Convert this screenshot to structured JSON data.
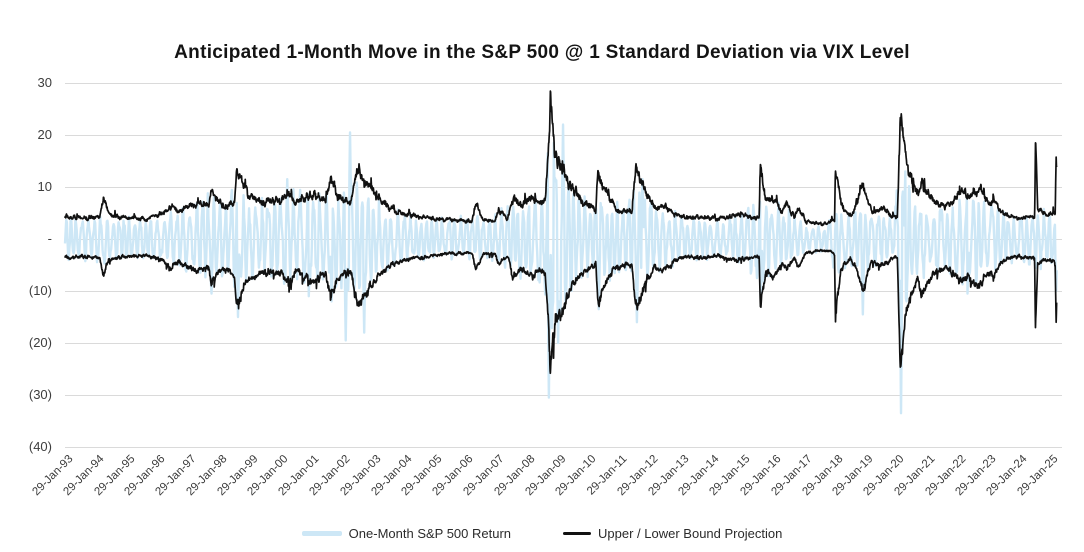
{
  "chart_data": {
    "type": "line",
    "title": "Anticipated 1-Month Move in the S&P 500 @ 1 Standard Deviation via VIX Level",
    "grid": true,
    "legend_position": "bottom",
    "colors": {
      "grid": "#dadada",
      "axis_text": "#3d3d3d",
      "background": "#ffffff"
    },
    "y_axis": {
      "range": [
        -40,
        30
      ],
      "negative_format": "parentheses",
      "ticks": [
        {
          "v": 30,
          "label": "30"
        },
        {
          "v": 20,
          "label": "20"
        },
        {
          "v": 10,
          "label": "10"
        },
        {
          "v": 0,
          "label": "-"
        },
        {
          "v": -10,
          "label": "(10)"
        },
        {
          "v": -20,
          "label": "(20)"
        },
        {
          "v": -30,
          "label": "(30)"
        },
        {
          "v": -40,
          "label": "(40)"
        }
      ]
    },
    "x_axis": {
      "tick_labels": [
        "29-Jan-93",
        "29-Jan-94",
        "29-Jan-95",
        "29-Jan-96",
        "29-Jan-97",
        "29-Jan-98",
        "29-Jan-99",
        "29-Jan-00",
        "29-Jan-01",
        "29-Jan-02",
        "29-Jan-03",
        "29-Jan-04",
        "29-Jan-05",
        "29-Jan-06",
        "29-Jan-07",
        "29-Jan-08",
        "29-Jan-09",
        "29-Jan-10",
        "29-Jan-11",
        "29-Jan-12",
        "29-Jan-13",
        "29-Jan-14",
        "29-Jan-15",
        "29-Jan-16",
        "29-Jan-17",
        "29-Jan-18",
        "29-Jan-19",
        "29-Jan-20",
        "29-Jan-21",
        "29-Jan-22",
        "29-Jan-23",
        "29-Jan-24",
        "29-Jan-25"
      ],
      "first_tick_time": 1993.08,
      "years_per_tick": 1,
      "series_end_time": 2025.3
    },
    "series": [
      {
        "name": "One-Month S&P 500 Return",
        "color": "#cde7f6",
        "line_width": 2.4,
        "style": "dense_oscillation",
        "amplitude_keypoints": [
          [
            1993.08,
            3.6
          ],
          [
            1994.0,
            3.9
          ],
          [
            1994.4,
            4.2
          ],
          [
            1995.0,
            3.4
          ],
          [
            1995.8,
            3.6
          ],
          [
            1996.3,
            3.9
          ],
          [
            1996.7,
            4.6
          ],
          [
            1997.2,
            5.4
          ],
          [
            1997.85,
            7.4
          ],
          [
            1998.2,
            5.6
          ],
          [
            1998.65,
            8.4
          ],
          [
            1999.0,
            7.0
          ],
          [
            1999.6,
            6.4
          ],
          [
            2000.2,
            7.8
          ],
          [
            2000.8,
            7.2
          ],
          [
            2001.3,
            7.0
          ],
          [
            2001.75,
            8.8
          ],
          [
            2002.1,
            7.6
          ],
          [
            2002.6,
            9.8
          ],
          [
            2003.0,
            7.0
          ],
          [
            2003.6,
            5.0
          ],
          [
            2004.2,
            3.9
          ],
          [
            2005.0,
            3.4
          ],
          [
            2006.0,
            3.5
          ],
          [
            2007.0,
            3.9
          ],
          [
            2007.7,
            6.0
          ],
          [
            2008.3,
            7.0
          ],
          [
            2008.6,
            9.0
          ],
          [
            2008.87,
            15.5
          ],
          [
            2009.3,
            11.5
          ],
          [
            2009.8,
            7.5
          ],
          [
            2010.1,
            6.0
          ],
          [
            2010.45,
            8.0
          ],
          [
            2011.0,
            5.5
          ],
          [
            2011.7,
            9.0
          ],
          [
            2012.2,
            6.2
          ],
          [
            2012.8,
            4.5
          ],
          [
            2013.5,
            3.3
          ],
          [
            2014.3,
            3.2
          ],
          [
            2015.0,
            4.0
          ],
          [
            2015.7,
            6.8
          ],
          [
            2016.1,
            6.2
          ],
          [
            2016.6,
            4.5
          ],
          [
            2017.1,
            2.3
          ],
          [
            2017.8,
            2.4
          ],
          [
            2018.15,
            5.8
          ],
          [
            2018.6,
            4.4
          ],
          [
            2019.0,
            6.0
          ],
          [
            2019.6,
            4.2
          ],
          [
            2020.0,
            3.6
          ],
          [
            2020.25,
            14.0
          ],
          [
            2020.6,
            7.2
          ],
          [
            2021.1,
            5.6
          ],
          [
            2021.7,
            5.2
          ],
          [
            2022.1,
            6.6
          ],
          [
            2022.6,
            7.6
          ],
          [
            2023.1,
            5.6
          ],
          [
            2023.7,
            4.4
          ],
          [
            2024.2,
            3.8
          ],
          [
            2024.7,
            5.6
          ],
          [
            2025.0,
            4.6
          ],
          [
            2025.3,
            6.0
          ]
        ],
        "extreme_events": [
          [
            1997.85,
            -10.5
          ],
          [
            1998.7,
            -15.0
          ],
          [
            2000.3,
            11.5
          ],
          [
            2001.0,
            -11.0
          ],
          [
            2001.73,
            -12.0
          ],
          [
            2002.2,
            -19.5
          ],
          [
            2002.35,
            20.5
          ],
          [
            2002.8,
            -18.0
          ],
          [
            2008.8,
            -30.5
          ],
          [
            2008.95,
            18.5
          ],
          [
            2009.1,
            -20.0
          ],
          [
            2009.25,
            22.0
          ],
          [
            2010.42,
            -13.5
          ],
          [
            2011.65,
            -16.0
          ],
          [
            2011.85,
            11.5
          ],
          [
            2015.68,
            -11.5
          ],
          [
            2018.99,
            -14.5
          ],
          [
            2020.23,
            -33.5
          ],
          [
            2020.38,
            13.0
          ],
          [
            2022.4,
            -10.5
          ],
          [
            2025.28,
            -10.0
          ]
        ]
      },
      {
        "name": "Upper / Lower Bound Projection",
        "color": "#111111",
        "line_width": 1.7,
        "style": "upper_lower_bounds",
        "lower_offset": 0.7,
        "upper_keypoints": [
          [
            1993.08,
            4.3
          ],
          [
            1993.6,
            4.0
          ],
          [
            1994.2,
            4.4
          ],
          [
            1994.33,
            7.8
          ],
          [
            1994.5,
            4.6
          ],
          [
            1995.1,
            4.1
          ],
          [
            1995.7,
            3.8
          ],
          [
            1996.2,
            4.7
          ],
          [
            1996.56,
            6.3
          ],
          [
            1996.75,
            5.0
          ],
          [
            1997.1,
            6.0
          ],
          [
            1997.4,
            6.9
          ],
          [
            1997.75,
            6.3
          ],
          [
            1997.82,
            9.7
          ],
          [
            1998.0,
            7.2
          ],
          [
            1998.35,
            6.4
          ],
          [
            1998.58,
            7.6
          ],
          [
            1998.67,
            13.6
          ],
          [
            1998.85,
            10.4
          ],
          [
            1999.1,
            8.2
          ],
          [
            1999.5,
            7.0
          ],
          [
            1999.85,
            7.4
          ],
          [
            2000.1,
            7.2
          ],
          [
            2000.33,
            8.8
          ],
          [
            2000.6,
            6.9
          ],
          [
            2000.95,
            8.1
          ],
          [
            2001.15,
            8.7
          ],
          [
            2001.55,
            7.0
          ],
          [
            2001.72,
            12.1
          ],
          [
            2001.9,
            8.9
          ],
          [
            2002.15,
            7.2
          ],
          [
            2002.35,
            6.8
          ],
          [
            2002.58,
            13.1
          ],
          [
            2002.8,
            11.0
          ],
          [
            2003.05,
            9.6
          ],
          [
            2003.3,
            7.4
          ],
          [
            2003.7,
            5.6
          ],
          [
            2004.1,
            4.8
          ],
          [
            2004.7,
            4.3
          ],
          [
            2005.2,
            3.7
          ],
          [
            2005.9,
            3.5
          ],
          [
            2006.3,
            3.4
          ],
          [
            2006.42,
            6.8
          ],
          [
            2006.65,
            3.7
          ],
          [
            2007.05,
            3.4
          ],
          [
            2007.17,
            5.5
          ],
          [
            2007.45,
            3.9
          ],
          [
            2007.64,
            8.1
          ],
          [
            2007.9,
            6.3
          ],
          [
            2008.07,
            7.7
          ],
          [
            2008.25,
            8.4
          ],
          [
            2008.5,
            6.6
          ],
          [
            2008.68,
            7.3
          ],
          [
            2008.79,
            18.5
          ],
          [
            2008.85,
            25.6
          ],
          [
            2009.0,
            16.5
          ],
          [
            2009.18,
            14.8
          ],
          [
            2009.45,
            10.8
          ],
          [
            2009.85,
            7.6
          ],
          [
            2010.1,
            6.2
          ],
          [
            2010.32,
            5.6
          ],
          [
            2010.39,
            12.9
          ],
          [
            2010.6,
            9.8
          ],
          [
            2010.95,
            5.9
          ],
          [
            2011.2,
            5.4
          ],
          [
            2011.5,
            5.6
          ],
          [
            2011.63,
            14.2
          ],
          [
            2011.8,
            11.4
          ],
          [
            2012.0,
            8.2
          ],
          [
            2012.25,
            5.9
          ],
          [
            2012.5,
            6.7
          ],
          [
            2012.9,
            4.8
          ],
          [
            2013.3,
            4.1
          ],
          [
            2013.8,
            4.3
          ],
          [
            2014.3,
            3.9
          ],
          [
            2014.9,
            4.7
          ],
          [
            2015.25,
            4.3
          ],
          [
            2015.63,
            4.1
          ],
          [
            2015.67,
            13.4
          ],
          [
            2015.85,
            6.9
          ],
          [
            2016.1,
            7.8
          ],
          [
            2016.38,
            5.0
          ],
          [
            2016.52,
            6.6
          ],
          [
            2016.78,
            4.3
          ],
          [
            2016.88,
            6.1
          ],
          [
            2017.15,
            3.4
          ],
          [
            2017.65,
            2.9
          ],
          [
            2017.98,
            3.2
          ],
          [
            2018.08,
            3.6
          ],
          [
            2018.11,
            14.9
          ],
          [
            2018.3,
            6.4
          ],
          [
            2018.6,
            4.3
          ],
          [
            2018.8,
            6.7
          ],
          [
            2019.0,
            10.2
          ],
          [
            2019.3,
            4.9
          ],
          [
            2019.5,
            5.4
          ],
          [
            2019.7,
            5.7
          ],
          [
            2019.98,
            4.1
          ],
          [
            2020.12,
            4.6
          ],
          [
            2020.22,
            24.9
          ],
          [
            2020.38,
            15.5
          ],
          [
            2020.6,
            10.8
          ],
          [
            2020.8,
            8.2
          ],
          [
            2020.9,
            11.0
          ],
          [
            2021.1,
            8.6
          ],
          [
            2021.35,
            7.2
          ],
          [
            2021.6,
            6.2
          ],
          [
            2021.85,
            7.0
          ],
          [
            2022.1,
            8.1
          ],
          [
            2022.25,
            9.4
          ],
          [
            2022.45,
            7.7
          ],
          [
            2022.6,
            8.7
          ],
          [
            2022.8,
            9.6
          ],
          [
            2023.05,
            6.9
          ],
          [
            2023.25,
            7.5
          ],
          [
            2023.5,
            5.2
          ],
          [
            2023.75,
            4.4
          ],
          [
            2024.05,
            4.0
          ],
          [
            2024.35,
            4.3
          ],
          [
            2024.58,
            4.0
          ],
          [
            2024.61,
            18.7
          ],
          [
            2024.68,
            5.7
          ],
          [
            2024.95,
            4.6
          ],
          [
            2025.15,
            4.9
          ],
          [
            2025.25,
            5.0
          ],
          [
            2025.28,
            17.1
          ],
          [
            2025.3,
            13.0
          ]
        ]
      }
    ]
  }
}
